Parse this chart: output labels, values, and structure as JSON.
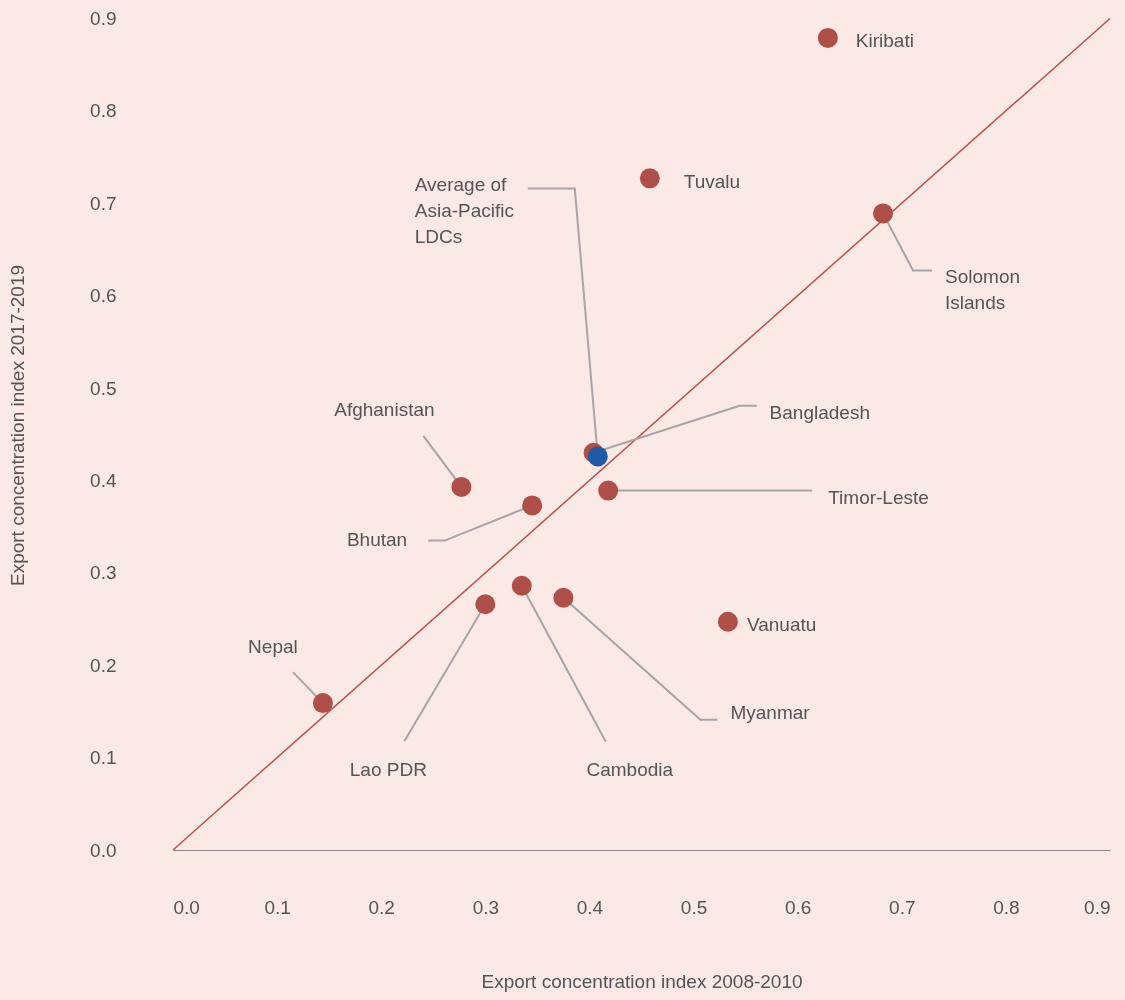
{
  "chart_data": {
    "type": "scatter",
    "xlabel": "Export concentration index 2008-2010",
    "ylabel": "Export concentration index 2017-2019",
    "xlim": [
      0,
      0.9
    ],
    "ylim": [
      0,
      0.92
    ],
    "xticks": [
      {
        "value": 0,
        "label": "0.0"
      },
      0.1,
      0.2,
      0.3,
      0.4,
      0.5,
      0.6,
      0.7,
      0.8,
      0.9
    ],
    "yticks": [
      {
        "value": 0,
        "label": "0.0"
      },
      0.1,
      0.2,
      0.3,
      0.4,
      0.5,
      0.6,
      0.7,
      0.8,
      0.9
    ],
    "grid": false,
    "series": [
      {
        "type": "line",
        "color": "#b5534d",
        "x": [
          0,
          0.9
        ],
        "values": [
          0,
          0.9
        ]
      },
      {
        "color": "#b04e48",
        "marker": "circle",
        "x": [
          0.629,
          0.458,
          0.682,
          0.277,
          0.404,
          0.418,
          0.345,
          0.533,
          0.144,
          0.3,
          0.335,
          0.375
        ],
        "values": [
          0.879,
          0.727,
          0.689,
          0.393,
          0.43,
          0.389,
          0.373,
          0.247,
          0.159,
          0.266,
          0.286,
          0.273
        ]
      },
      {
        "color": "#1f5aa6",
        "marker": "circle",
        "x": [
          0.408
        ],
        "values": [
          0.426
        ]
      }
    ],
    "annotations": [
      {
        "text": "Kiribati",
        "x": 0.629,
        "y": 0.879
      },
      {
        "text": "Tuvalu",
        "x": 0.458,
        "y": 0.727
      },
      {
        "text": "Average of\nAsia-Pacific\nLDCs",
        "x": 0.408,
        "y": 0.426
      },
      {
        "text": "Solomon\nIslands",
        "x": 0.682,
        "y": 0.689
      },
      {
        "text": "Afghanistan",
        "x": 0.277,
        "y": 0.393
      },
      {
        "text": "Bangladesh",
        "x": 0.404,
        "y": 0.43
      },
      {
        "text": "Timor-Leste",
        "x": 0.418,
        "y": 0.389
      },
      {
        "text": "Bhutan",
        "x": 0.345,
        "y": 0.373
      },
      {
        "text": "Vanuatu",
        "x": 0.533,
        "y": 0.247
      },
      {
        "text": "Nepal",
        "x": 0.144,
        "y": 0.159
      },
      {
        "text": "Lao PDR",
        "x": 0.3,
        "y": 0.266
      },
      {
        "text": "Cambodia",
        "x": 0.335,
        "y": 0.286
      },
      {
        "text": "Myanmar",
        "x": 0.375,
        "y": 0.273
      }
    ]
  }
}
